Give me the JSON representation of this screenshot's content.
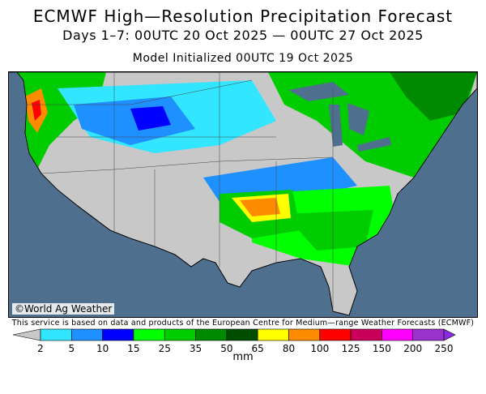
{
  "title": "ECMWF High—Resolution Precipitation Forecast",
  "subtitle": "Days 1–7: 00UTC 20 Oct 2025 — 00UTC 27 Oct 2025",
  "init_line": "Model Initialized 00UTC 19 Oct 2025",
  "credit": "©World Ag Weather",
  "disclaimer": "This service is based on data and products of the European Centre for Medium—range Weather Forecasts (ECMWF)",
  "units": "mm",
  "map": {
    "region": "Contiguous United States",
    "ocean_color": "#4f6f8f",
    "land_no_precip_color": "#c8c8c8"
  },
  "legend": {
    "bins": [
      {
        "label": "2",
        "color": "#c8c8c8"
      },
      {
        "label": "5",
        "color": "#33e6ff"
      },
      {
        "label": "10",
        "color": "#1e90ff"
      },
      {
        "label": "15",
        "color": "#0000ff"
      },
      {
        "label": "25",
        "color": "#00ff00"
      },
      {
        "label": "35",
        "color": "#00cc00"
      },
      {
        "label": "50",
        "color": "#008a00"
      },
      {
        "label": "65",
        "color": "#004d00"
      },
      {
        "label": "80",
        "color": "#ffff00"
      },
      {
        "label": "100",
        "color": "#ff8c00"
      },
      {
        "label": "125",
        "color": "#ff0000"
      },
      {
        "label": "150",
        "color": "#c8005a"
      },
      {
        "label": "200",
        "color": "#ff00ff"
      },
      {
        "label": "250",
        "color": "#9932cc"
      }
    ],
    "overflow_color": "#8a2be2"
  }
}
